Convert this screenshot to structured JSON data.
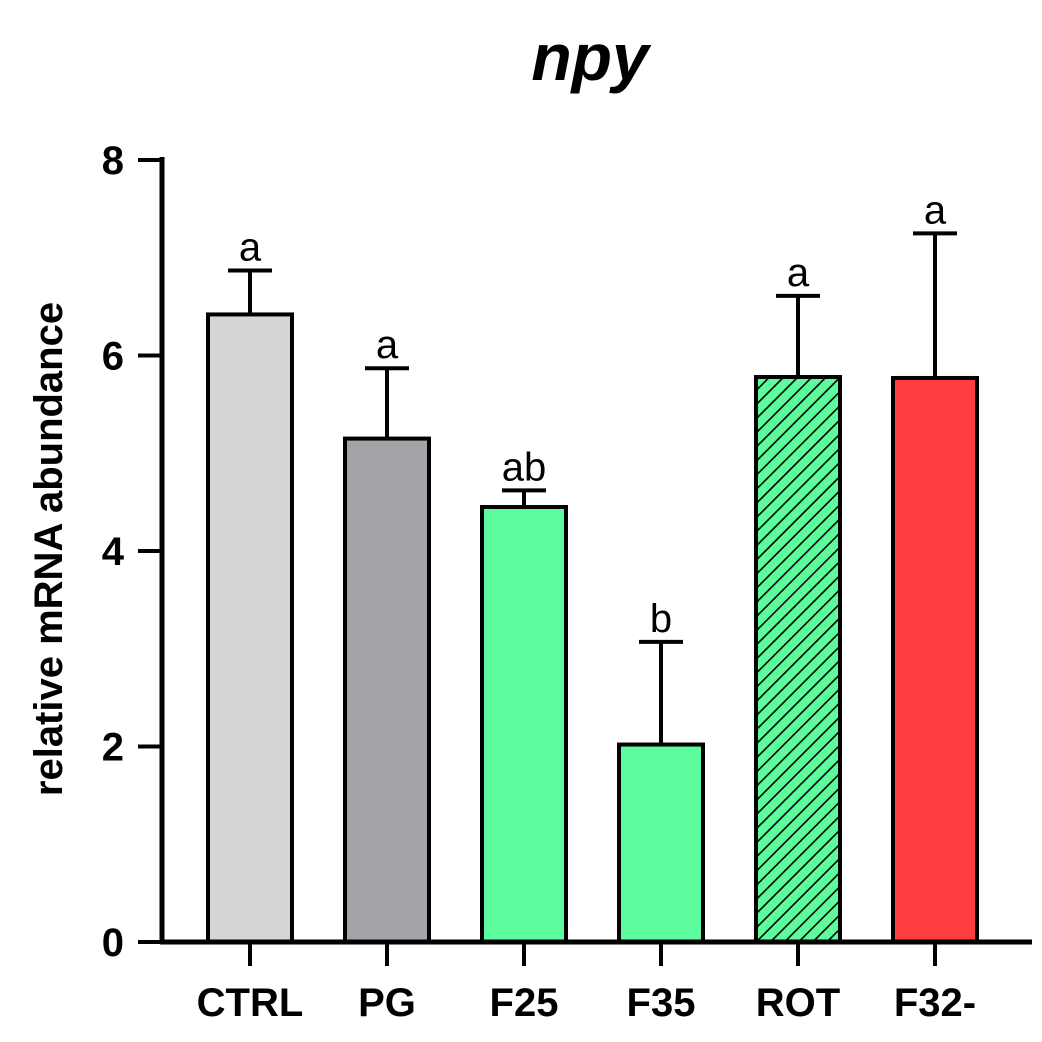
{
  "chart_data": {
    "type": "bar",
    "title": "npy",
    "xlabel": "",
    "ylabel": "relative mRNA abundance",
    "ylim": [
      0,
      8
    ],
    "yticks": [
      0,
      2,
      4,
      6,
      8
    ],
    "grid": false,
    "legend": "none",
    "categories": [
      "CTRL",
      "PG",
      "F25",
      "F35",
      "ROT",
      "F32-"
    ],
    "values": [
      6.42,
      5.15,
      4.45,
      2.02,
      5.78,
      5.77
    ],
    "errors": [
      0.45,
      0.72,
      0.17,
      1.05,
      0.83,
      1.48
    ],
    "significance": [
      "a",
      "a",
      "ab",
      "b",
      "a",
      "a"
    ],
    "bar_colors": [
      "#d6d6d6",
      "#a3a3a8",
      "#5cfc9c",
      "#5cfc9c",
      "#5cfc9c",
      "#ff3f3f"
    ],
    "bar_patterns": [
      "solid",
      "solid",
      "solid",
      "solid",
      "hatched",
      "solid"
    ]
  }
}
